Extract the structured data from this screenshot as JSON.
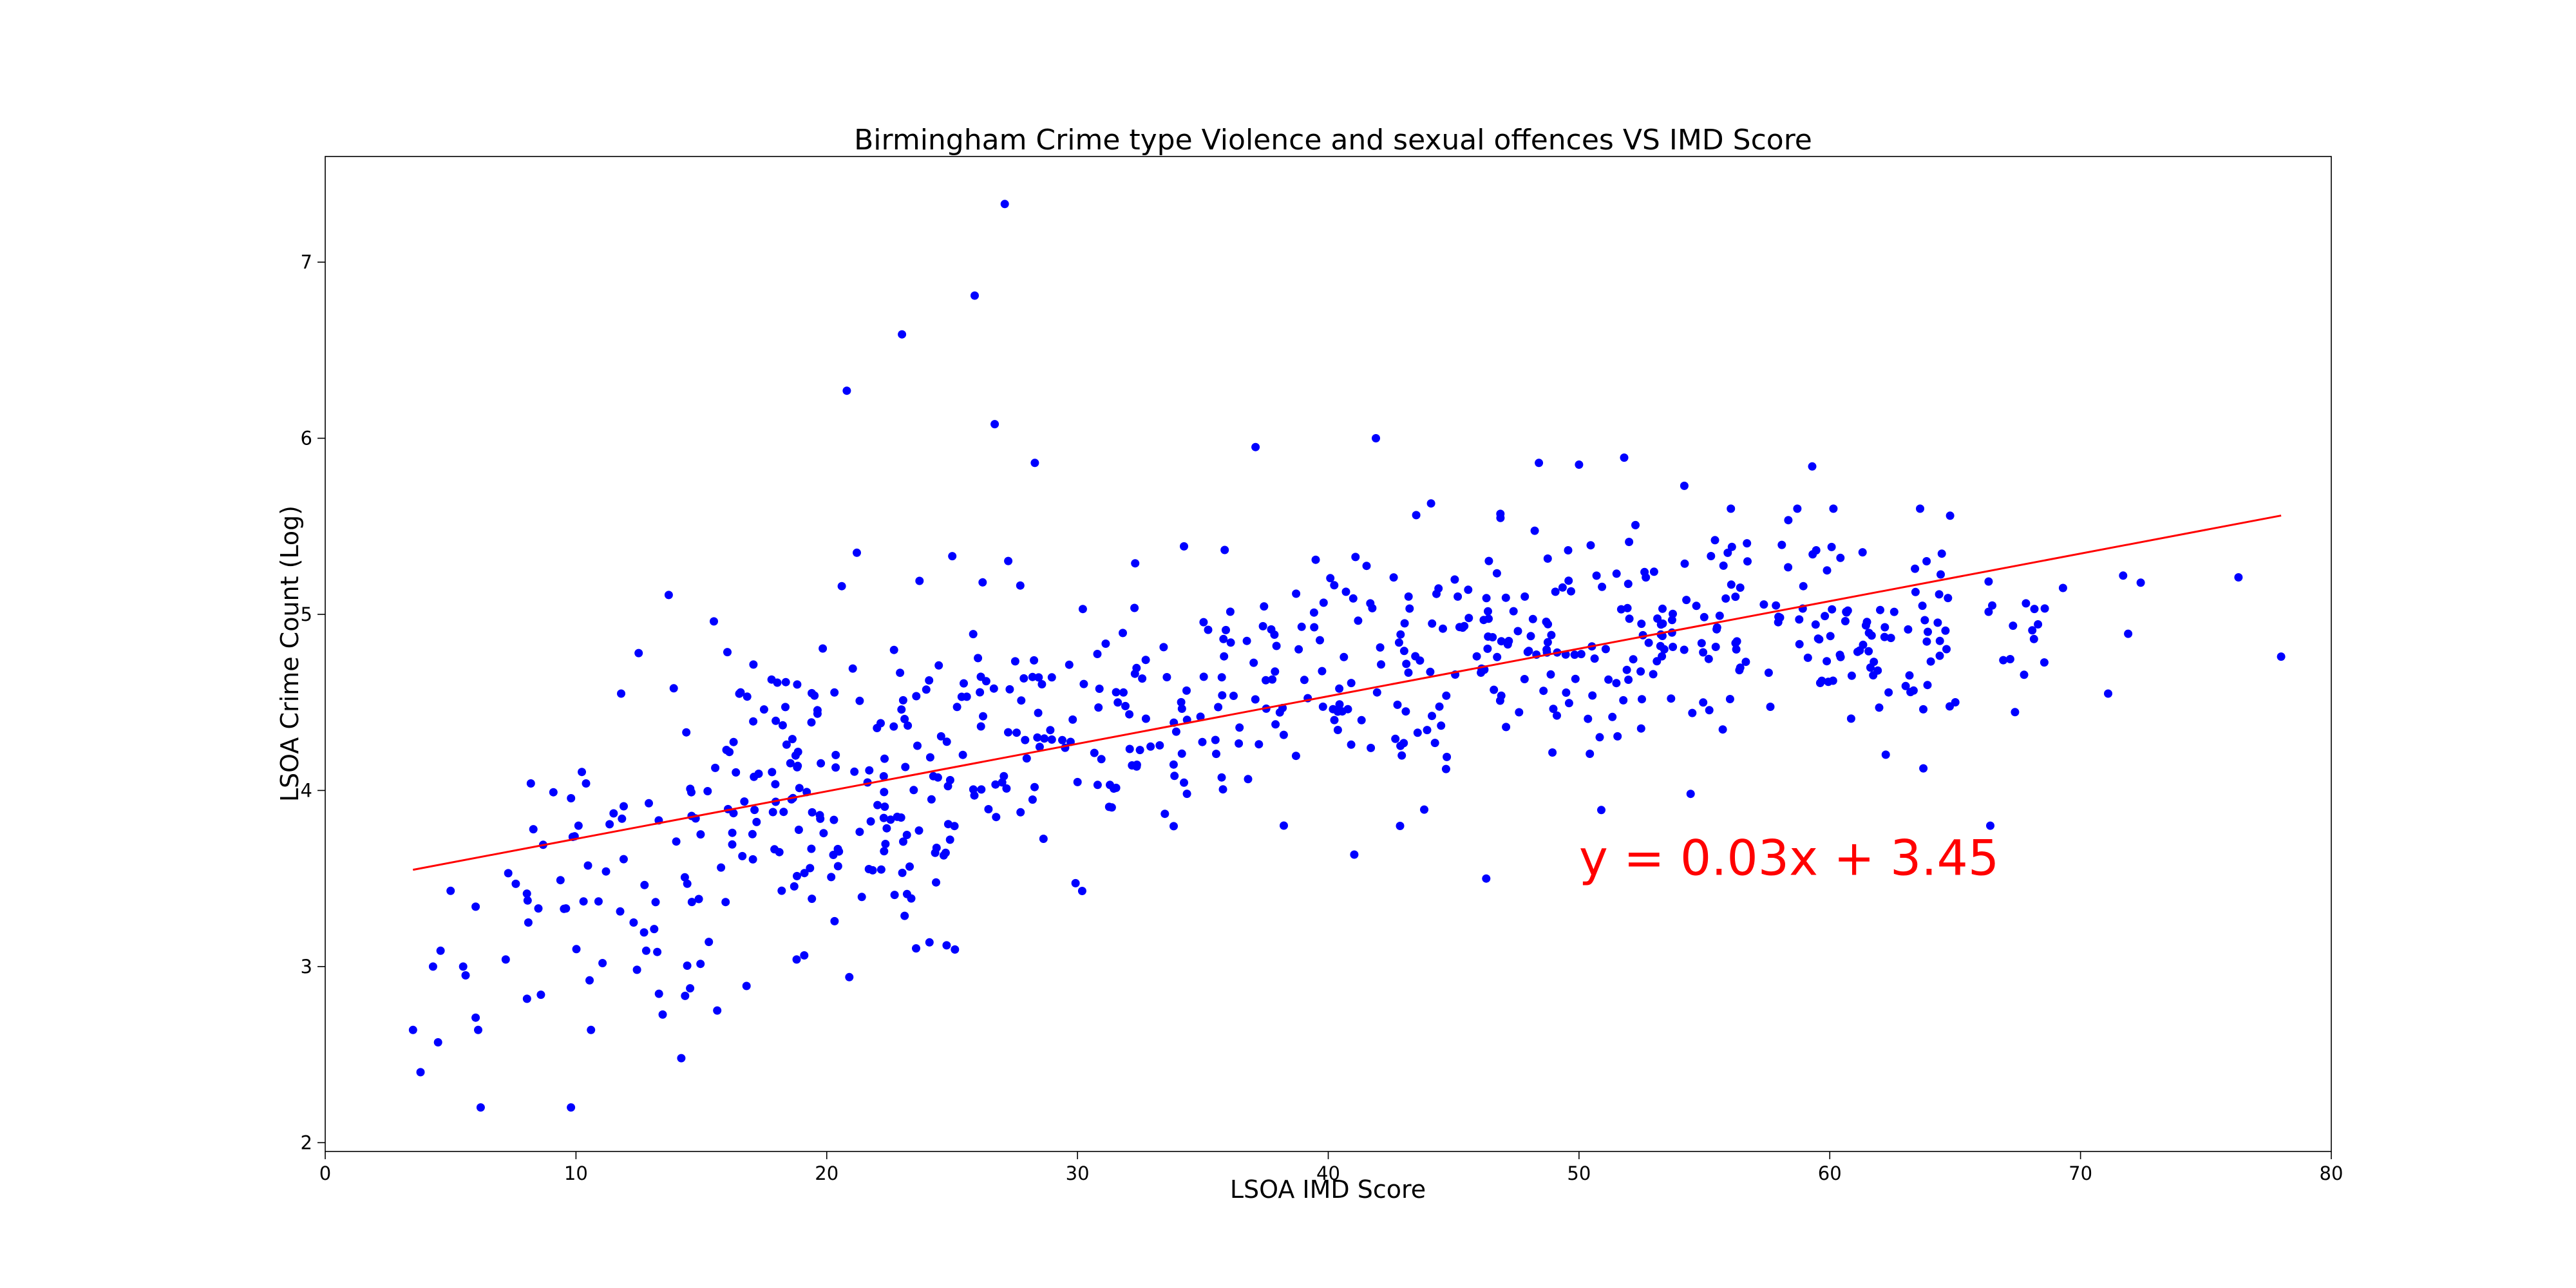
{
  "chart_data": {
    "type": "scatter",
    "title": "Birmingham Crime type Violence and sexual offences VS IMD Score",
    "xlabel": "LSOA IMD Score",
    "ylabel": "LSOA Crime Count (Log)",
    "xlim": [
      0,
      80
    ],
    "ylim": [
      1.95,
      7.6
    ],
    "xticks": [
      0,
      10,
      20,
      30,
      40,
      50,
      60,
      70,
      80
    ],
    "yticks": [
      2,
      3,
      4,
      5,
      6,
      7
    ],
    "grid": false,
    "point_color": "#0000ff",
    "line_color": "#ff0000",
    "regression": {
      "slope": 0.027,
      "intercept": 3.455,
      "x_range": [
        3.5,
        78
      ]
    },
    "annotation": {
      "text": "y = 0.03x + 3.45",
      "x": 50,
      "y": 3.52,
      "color": "#ff0000"
    },
    "outliers": [
      [
        3.5,
        2.64
      ],
      [
        3.8,
        2.4
      ],
      [
        4.5,
        2.57
      ],
      [
        6.2,
        2.2
      ],
      [
        9.8,
        2.2
      ],
      [
        14.2,
        2.48
      ],
      [
        4.3,
        3.0
      ],
      [
        4.6,
        3.09
      ],
      [
        5.0,
        3.43
      ],
      [
        5.5,
        3.0
      ],
      [
        5.6,
        2.95
      ],
      [
        6.0,
        3.34
      ],
      [
        6.0,
        2.71
      ],
      [
        6.1,
        2.64
      ],
      [
        7.2,
        3.04
      ],
      [
        7.3,
        3.53
      ],
      [
        7.6,
        3.47
      ],
      [
        8.1,
        3.25
      ],
      [
        8.2,
        4.04
      ],
      [
        8.3,
        3.78
      ],
      [
        8.5,
        3.33
      ],
      [
        8.6,
        2.84
      ],
      [
        9.1,
        3.99
      ],
      [
        9.6,
        3.33
      ],
      [
        10.1,
        3.8
      ],
      [
        10.3,
        3.37
      ],
      [
        10.4,
        4.04
      ],
      [
        10.6,
        2.64
      ],
      [
        10.9,
        3.37
      ],
      [
        11.5,
        3.87
      ],
      [
        11.8,
        4.55
      ],
      [
        11.9,
        3.61
      ],
      [
        12.3,
        3.25
      ],
      [
        12.5,
        4.78
      ],
      [
        12.8,
        3.09
      ],
      [
        13.3,
        3.83
      ],
      [
        13.7,
        5.11
      ],
      [
        13.9,
        4.58
      ],
      [
        14.0,
        3.71
      ],
      [
        14.4,
        4.33
      ],
      [
        14.6,
        3.99
      ],
      [
        15.3,
        3.14
      ],
      [
        15.5,
        4.96
      ],
      [
        16.0,
        4.23
      ],
      [
        16.8,
        2.89
      ],
      [
        17.5,
        4.46
      ],
      [
        17.8,
        4.63
      ],
      [
        18.4,
        4.26
      ],
      [
        18.8,
        3.04
      ],
      [
        20.6,
        5.16
      ],
      [
        20.8,
        6.27
      ],
      [
        20.9,
        2.94
      ],
      [
        21.2,
        5.35
      ],
      [
        23.0,
        6.59
      ],
      [
        23.7,
        5.19
      ],
      [
        25.9,
        6.81
      ],
      [
        26.7,
        6.08
      ],
      [
        27.1,
        7.33
      ],
      [
        28.3,
        5.86
      ],
      [
        32.3,
        5.29
      ],
      [
        37.1,
        5.95
      ],
      [
        39.5,
        5.31
      ],
      [
        41.9,
        6.0
      ],
      [
        44.1,
        5.63
      ],
      [
        46.3,
        3.5
      ],
      [
        48.4,
        5.86
      ],
      [
        50.0,
        5.85
      ],
      [
        51.8,
        5.89
      ],
      [
        54.2,
        5.73
      ],
      [
        59.3,
        5.84
      ],
      [
        64.8,
        5.56
      ],
      [
        66.4,
        3.8
      ],
      [
        69.3,
        5.15
      ],
      [
        71.1,
        4.55
      ],
      [
        71.7,
        5.22
      ],
      [
        71.9,
        4.89
      ],
      [
        72.4,
        5.18
      ],
      [
        76.3,
        5.21
      ],
      [
        78.0,
        4.76
      ]
    ],
    "clusters": [
      {
        "x_range": [
          8,
          16
        ],
        "y_mean": 3.55,
        "y_sd": 0.45,
        "count": 45
      },
      {
        "x_range": [
          16,
          25
        ],
        "y_mean": 3.98,
        "y_sd": 0.38,
        "count": 140
      },
      {
        "x_range": [
          25,
          35
        ],
        "y_mean": 4.35,
        "y_sd": 0.36,
        "count": 110
      },
      {
        "x_range": [
          35,
          45
        ],
        "y_mean": 4.62,
        "y_sd": 0.34,
        "count": 110
      },
      {
        "x_range": [
          45,
          55
        ],
        "y_mean": 4.8,
        "y_sd": 0.32,
        "count": 130
      },
      {
        "x_range": [
          55,
          65
        ],
        "y_mean": 4.92,
        "y_sd": 0.3,
        "count": 115
      },
      {
        "x_range": [
          65,
          69
        ],
        "y_mean": 4.9,
        "y_sd": 0.22,
        "count": 16
      }
    ]
  }
}
